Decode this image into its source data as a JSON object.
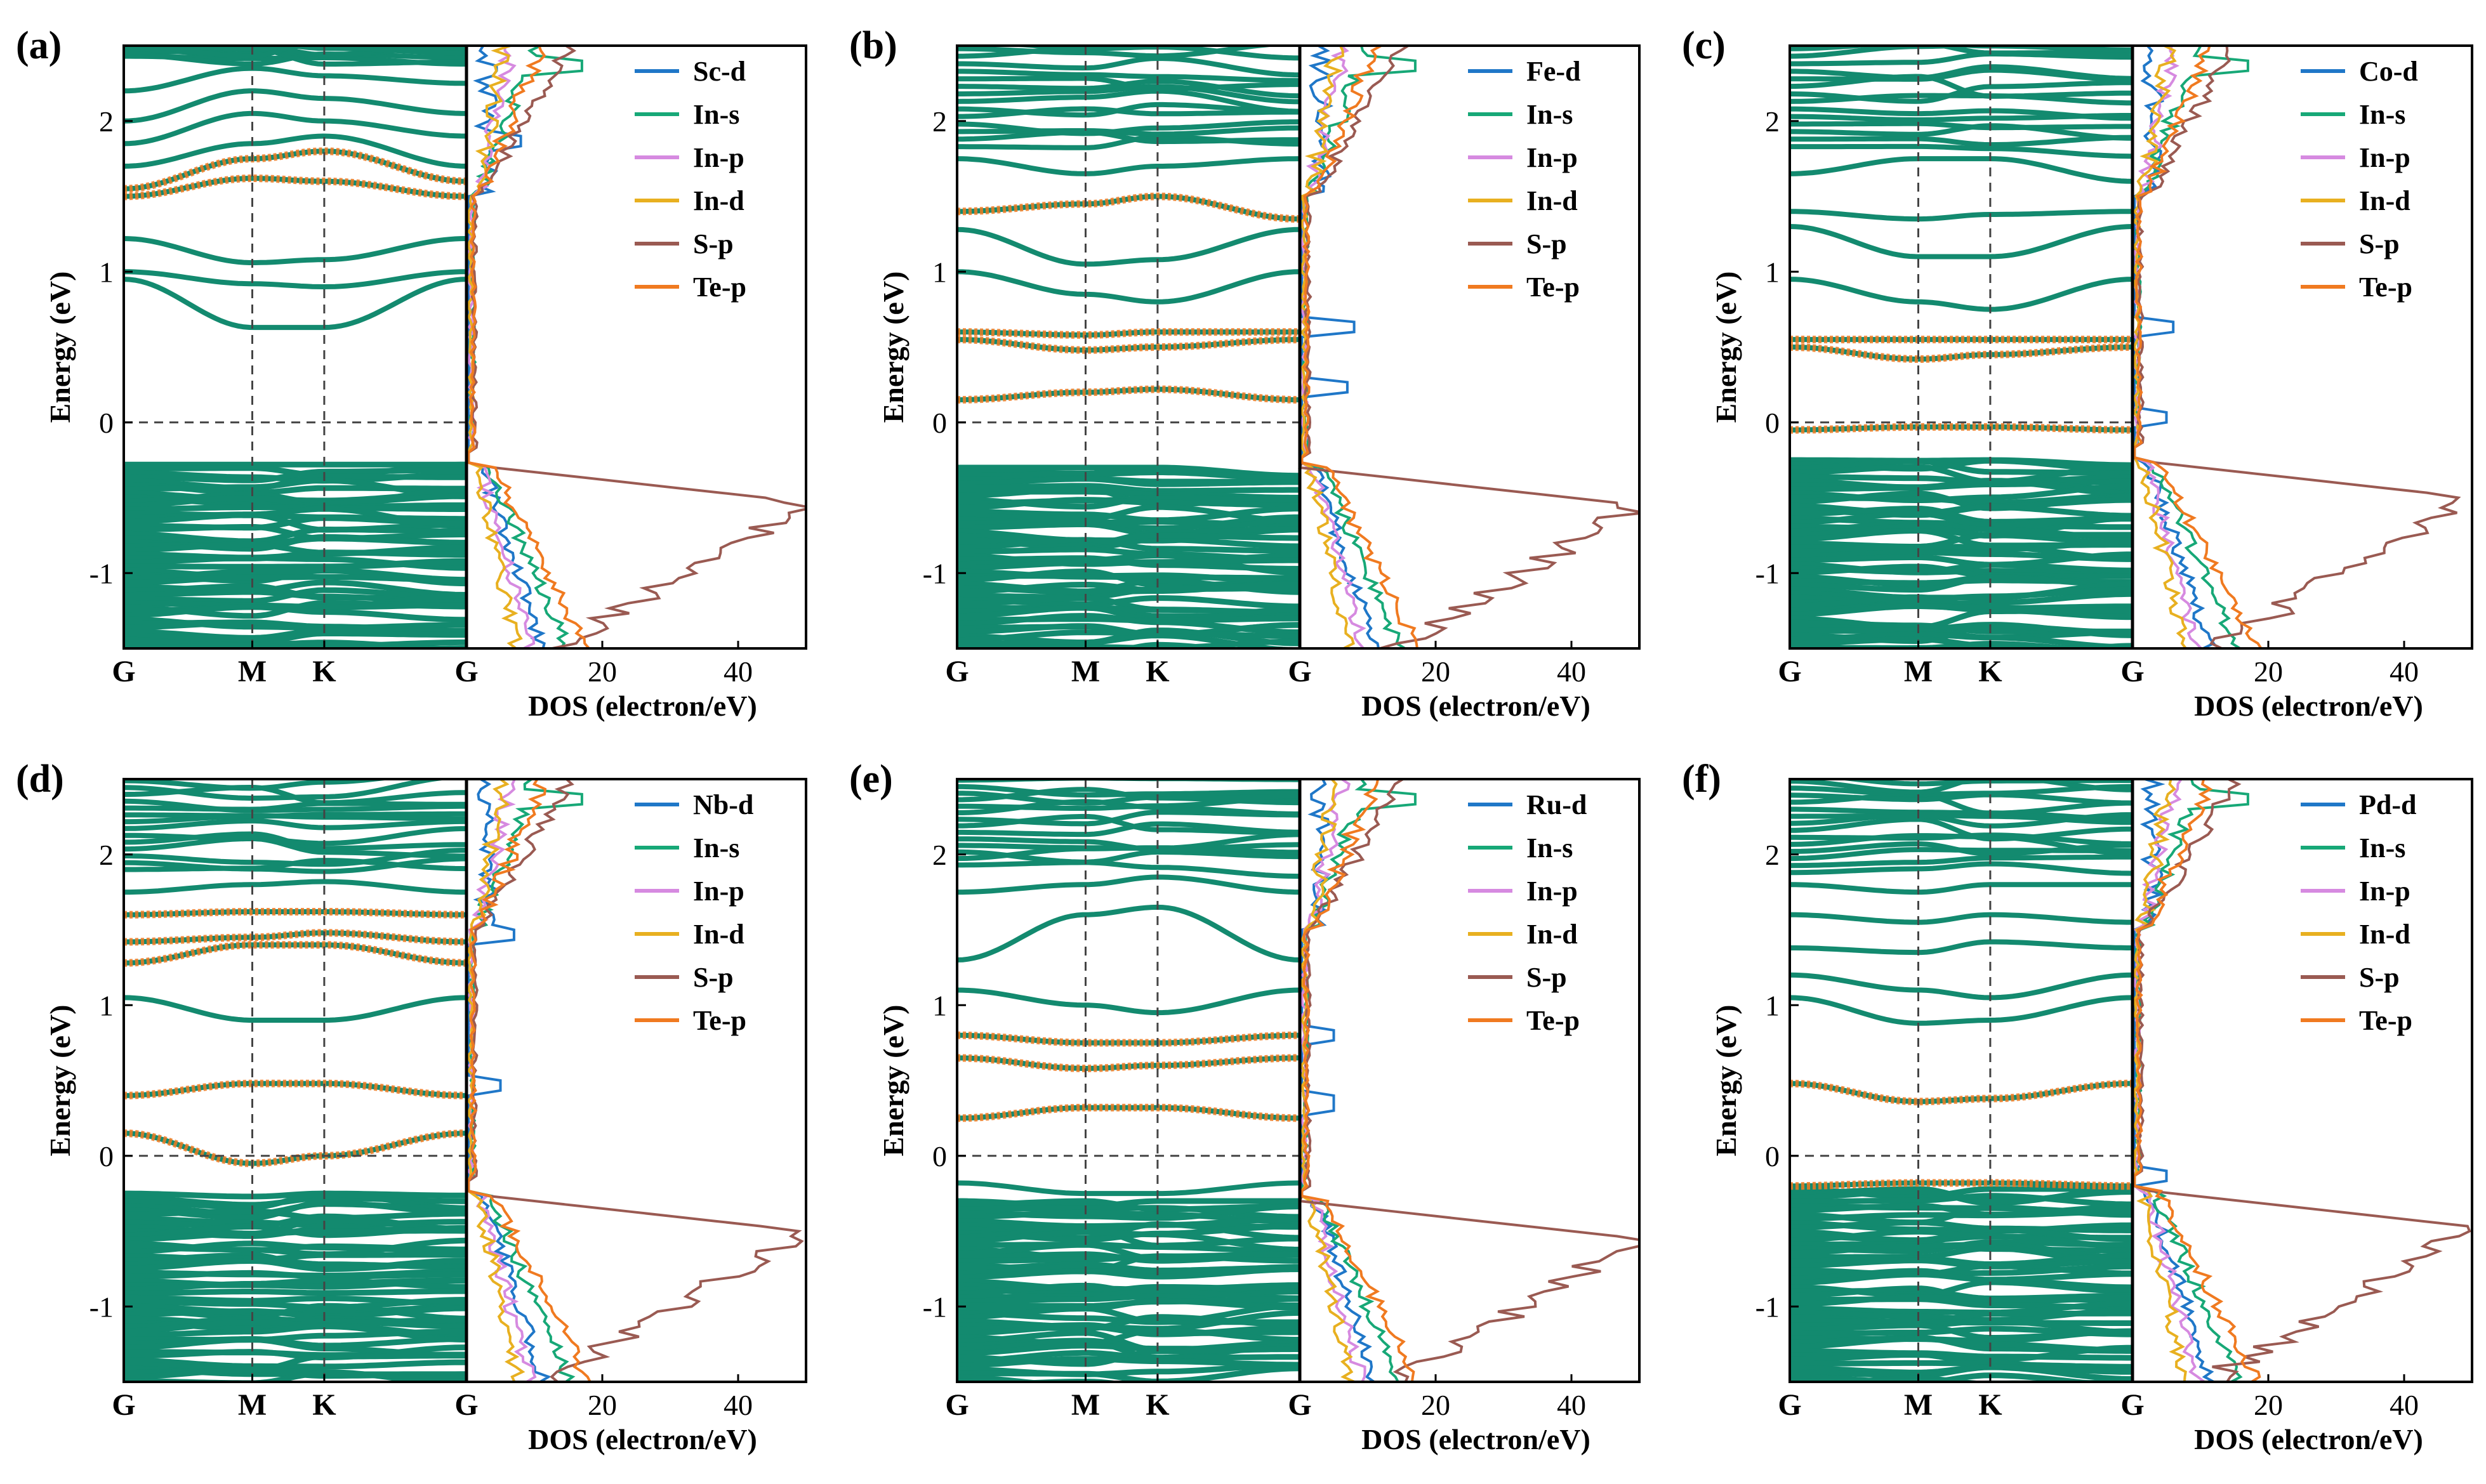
{
  "chart_data": [
    {
      "panel": "(a)",
      "type": "line",
      "band_xticks": [
        "G",
        "M",
        "K",
        "G"
      ],
      "ylabel": "Energy (eV)",
      "ylim": [
        -1.5,
        2.5
      ],
      "yticks": [
        "-1",
        "0",
        "1",
        "2"
      ],
      "dos_xlabel": "DOS (electron/eV)",
      "dos_xlim": [
        0,
        50
      ],
      "dos_xticks": [
        "20",
        "40"
      ],
      "legend": [
        "Sc-d",
        "In-s",
        "In-p",
        "In-d",
        "S-p",
        "Te-p"
      ],
      "bands": {
        "valence_max": -0.28,
        "conduction": [
          [
            0.95,
            0.63,
            0.63,
            0.95
          ],
          [
            1.0,
            0.92,
            0.9,
            1.0
          ],
          [
            1.22,
            1.06,
            1.08,
            1.22
          ],
          [
            1.5,
            1.62,
            1.6,
            1.5
          ],
          [
            1.55,
            1.75,
            1.8,
            1.6
          ],
          [
            1.7,
            1.85,
            1.9,
            1.7
          ],
          [
            1.85,
            2.05,
            2.0,
            1.9
          ],
          [
            2.0,
            2.2,
            2.15,
            2.05
          ],
          [
            2.2,
            2.35,
            2.3,
            2.25
          ]
        ],
        "orange": [
          [
            1.5,
            1.62,
            1.6,
            1.5
          ],
          [
            1.55,
            1.75,
            1.8,
            1.6
          ]
        ]
      },
      "dos_peaks": {
        "Sc-d": [
          [
            1.85,
            8
          ]
        ],
        "In-s": [
          [
            2.35,
            17
          ]
        ],
        "S-p": [
          [
            -0.38,
            50
          ],
          [
            -0.5,
            50
          ]
        ]
      }
    },
    {
      "panel": "(b)",
      "type": "line",
      "band_xticks": [
        "G",
        "M",
        "K",
        "G"
      ],
      "ylabel": "Energy (eV)",
      "ylim": [
        -1.5,
        2.5
      ],
      "yticks": [
        "-1",
        "0",
        "1",
        "2"
      ],
      "dos_xlabel": "DOS (electron/eV)",
      "dos_xlim": [
        0,
        50
      ],
      "dos_xticks": [
        "20",
        "40"
      ],
      "legend": [
        "Fe-d",
        "In-s",
        "In-p",
        "In-d",
        "S-p",
        "Te-p"
      ],
      "bands": {
        "valence_max": -0.3,
        "conduction": [
          [
            0.15,
            0.2,
            0.22,
            0.15
          ],
          [
            0.55,
            0.48,
            0.5,
            0.55
          ],
          [
            0.6,
            0.58,
            0.6,
            0.6
          ],
          [
            1.0,
            0.85,
            0.8,
            1.0
          ],
          [
            1.28,
            1.05,
            1.08,
            1.28
          ],
          [
            1.4,
            1.45,
            1.5,
            1.35
          ],
          [
            1.75,
            1.65,
            1.7,
            1.75
          ]
        ],
        "orange": [
          [
            0.15,
            0.2,
            0.22,
            0.15
          ],
          [
            0.55,
            0.48,
            0.5,
            0.55
          ],
          [
            0.6,
            0.58,
            0.6,
            0.6
          ],
          [
            1.4,
            1.45,
            1.5,
            1.35
          ]
        ]
      },
      "dos_peaks": {
        "Fe-d": [
          [
            0.62,
            8
          ],
          [
            0.22,
            7
          ]
        ],
        "In-s": [
          [
            2.35,
            17
          ]
        ],
        "S-p": [
          [
            -0.42,
            50
          ],
          [
            -0.5,
            50
          ]
        ]
      }
    },
    {
      "panel": "(c)",
      "type": "line",
      "band_xticks": [
        "G",
        "M",
        "K",
        "G"
      ],
      "ylabel": "Energy (eV)",
      "ylim": [
        -1.5,
        2.5
      ],
      "yticks": [
        "-1",
        "0",
        "1",
        "2"
      ],
      "dos_xlabel": "DOS (electron/eV)",
      "dos_xlim": [
        0,
        50
      ],
      "dos_xticks": [
        "20",
        "40"
      ],
      "legend": [
        "Co-d",
        "In-s",
        "In-p",
        "In-d",
        "S-p",
        "Te-p"
      ],
      "bands": {
        "valence_max": -0.25,
        "conduction": [
          [
            -0.05,
            -0.03,
            -0.03,
            -0.05
          ],
          [
            0.5,
            0.42,
            0.45,
            0.5
          ],
          [
            0.55,
            0.55,
            0.55,
            0.55
          ],
          [
            0.95,
            0.8,
            0.75,
            0.95
          ],
          [
            1.3,
            1.1,
            1.1,
            1.3
          ],
          [
            1.4,
            1.35,
            1.38,
            1.4
          ],
          [
            1.65,
            1.75,
            1.75,
            1.6
          ]
        ],
        "orange": [
          [
            -0.05,
            -0.03,
            -0.03,
            -0.05
          ],
          [
            0.5,
            0.42,
            0.45,
            0.5
          ],
          [
            0.55,
            0.55,
            0.55,
            0.55
          ]
        ]
      },
      "dos_peaks": {
        "Co-d": [
          [
            0.62,
            6
          ],
          [
            0.03,
            5
          ]
        ],
        "In-s": [
          [
            2.35,
            17
          ]
        ],
        "S-p": [
          [
            -0.4,
            50
          ],
          [
            -0.48,
            50
          ]
        ]
      }
    },
    {
      "panel": "(d)",
      "type": "line",
      "band_xticks": [
        "G",
        "M",
        "K",
        "G"
      ],
      "ylabel": "Energy (eV)",
      "ylim": [
        -1.5,
        2.5
      ],
      "yticks": [
        "-1",
        "0",
        "1",
        "2"
      ],
      "dos_xlabel": "DOS (electron/eV)",
      "dos_xlim": [
        0,
        50
      ],
      "dos_xticks": [
        "20",
        "40"
      ],
      "legend": [
        "Nb-d",
        "In-s",
        "In-p",
        "In-d",
        "S-p",
        "Te-p"
      ],
      "bands": {
        "valence_max": -0.25,
        "conduction": [
          [
            0.15,
            -0.05,
            0.0,
            0.15
          ],
          [
            0.4,
            0.48,
            0.48,
            0.4
          ],
          [
            1.05,
            0.9,
            0.9,
            1.05
          ],
          [
            1.28,
            1.4,
            1.4,
            1.28
          ],
          [
            1.42,
            1.45,
            1.48,
            1.42
          ],
          [
            1.6,
            1.62,
            1.62,
            1.6
          ],
          [
            1.75,
            1.8,
            1.82,
            1.75
          ]
        ],
        "orange": [
          [
            0.15,
            -0.05,
            0.0,
            0.15
          ],
          [
            0.4,
            0.48,
            0.48,
            0.4
          ],
          [
            1.28,
            1.4,
            1.4,
            1.28
          ],
          [
            1.42,
            1.45,
            1.48,
            1.42
          ],
          [
            1.6,
            1.62,
            1.62,
            1.6
          ]
        ]
      },
      "dos_peaks": {
        "Nb-d": [
          [
            1.48,
            7
          ],
          [
            0.48,
            5
          ]
        ],
        "In-s": [
          [
            2.35,
            17
          ]
        ],
        "S-p": [
          [
            -0.38,
            50
          ],
          [
            -0.42,
            50
          ]
        ]
      }
    },
    {
      "panel": "(e)",
      "type": "line",
      "band_xticks": [
        "G",
        "M",
        "K",
        "G"
      ],
      "ylabel": "Energy (eV)",
      "ylim": [
        -1.5,
        2.5
      ],
      "yticks": [
        "-1",
        "0",
        "1",
        "2"
      ],
      "dos_xlabel": "DOS (electron/eV)",
      "dos_xlim": [
        0,
        50
      ],
      "dos_xticks": [
        "20",
        "40"
      ],
      "legend": [
        "Ru-d",
        "In-s",
        "In-p",
        "In-d",
        "S-p",
        "Te-p"
      ],
      "bands": {
        "valence_max": -0.3,
        "conduction": [
          [
            -0.18,
            -0.25,
            -0.25,
            -0.18
          ],
          [
            0.25,
            0.32,
            0.32,
            0.25
          ],
          [
            0.65,
            0.58,
            0.6,
            0.65
          ],
          [
            0.8,
            0.75,
            0.75,
            0.8
          ],
          [
            1.1,
            1.0,
            0.95,
            1.1
          ],
          [
            1.3,
            1.6,
            1.65,
            1.3
          ],
          [
            1.75,
            1.8,
            1.85,
            1.75
          ]
        ],
        "orange": [
          [
            0.25,
            0.32,
            0.32,
            0.25
          ],
          [
            0.65,
            0.58,
            0.6,
            0.65
          ],
          [
            0.8,
            0.75,
            0.75,
            0.8
          ]
        ]
      },
      "dos_peaks": {
        "Ru-d": [
          [
            0.8,
            5
          ],
          [
            0.35,
            5
          ]
        ],
        "In-s": [
          [
            2.35,
            17
          ]
        ],
        "S-p": [
          [
            -0.4,
            50
          ],
          [
            -0.48,
            50
          ]
        ]
      }
    },
    {
      "panel": "(f)",
      "type": "line",
      "band_xticks": [
        "G",
        "M",
        "K",
        "G"
      ],
      "ylabel": "Energy (eV)",
      "ylim": [
        -1.5,
        2.5
      ],
      "yticks": [
        "-1",
        "0",
        "1",
        "2"
      ],
      "dos_xlabel": "DOS (electron/eV)",
      "dos_xlim": [
        0,
        50
      ],
      "dos_xticks": [
        "20",
        "40"
      ],
      "legend": [
        "Pd-d",
        "In-s",
        "In-p",
        "In-d",
        "S-p",
        "Te-p"
      ],
      "bands": {
        "valence_max": -0.22,
        "conduction": [
          [
            -0.2,
            -0.18,
            -0.18,
            -0.2
          ],
          [
            0.48,
            0.36,
            0.38,
            0.48
          ],
          [
            1.05,
            0.88,
            0.9,
            1.05
          ],
          [
            1.2,
            1.1,
            1.05,
            1.2
          ],
          [
            1.38,
            1.35,
            1.42,
            1.38
          ],
          [
            1.6,
            1.55,
            1.6,
            1.55
          ],
          [
            1.8,
            1.75,
            1.8,
            1.8
          ]
        ],
        "orange": [
          [
            -0.2,
            -0.18,
            -0.18,
            -0.2
          ],
          [
            0.48,
            0.36,
            0.38,
            0.48
          ]
        ]
      },
      "dos_peaks": {
        "Pd-d": [
          [
            -0.15,
            5
          ]
        ],
        "In-s": [
          [
            2.35,
            17
          ]
        ],
        "S-p": [
          [
            -0.4,
            50
          ],
          [
            -0.5,
            50
          ]
        ]
      }
    }
  ],
  "colors": {
    "band": "#138a6f",
    "orange": "#f07a20",
    "M-d": "#1f77c8",
    "In-s": "#17a877",
    "In-p": "#d68ae0",
    "In-d": "#e8b020",
    "S-p": "#9a5a52",
    "Te-p": "#f07a20"
  }
}
